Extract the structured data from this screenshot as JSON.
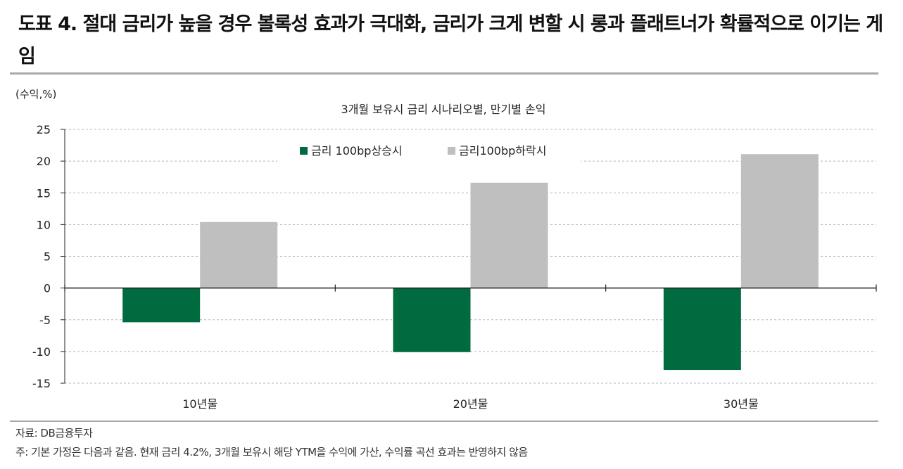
{
  "header": {
    "title": "도표 4. 절대 금리가 높을 경우 볼록성 효과가 극대화, 금리가 크게 변할 시 롱과 플래트너가 확률적으로 이기는 게임"
  },
  "footer": {
    "source": "자료: DB금융투자",
    "note": "주: 기본 가정은 다음과 같음. 현재 금리 4.2%, 3개월 보유시 해당 YTM을 수익에 가산, 수익률 곡선 효과는 반영하지 않음"
  },
  "chart_data": {
    "type": "bar",
    "title": "3개월 보유시 금리 시나리오별, 만기별 손익",
    "ylabel": "(수익,%)",
    "xlabel": "",
    "categories": [
      "10년물",
      "20년물",
      "30년물"
    ],
    "ylim": [
      -15,
      25
    ],
    "yticks": [
      25,
      20,
      15,
      10,
      5,
      0,
      -5,
      -10,
      -15
    ],
    "ytick_labels": [
      "25",
      "20",
      "15",
      "10",
      "5",
      "0",
      "-5",
      "-10",
      "-15"
    ],
    "grid": true,
    "legend_position": "top-center",
    "series": [
      {
        "name": "금리 100bp상승시",
        "color": "#006b3f",
        "values": [
          -5.4,
          -10.1,
          -12.9
        ]
      },
      {
        "name": "금리100bp하락시",
        "color": "#bfbfbf",
        "values": [
          10.4,
          16.6,
          21.1
        ]
      }
    ]
  }
}
